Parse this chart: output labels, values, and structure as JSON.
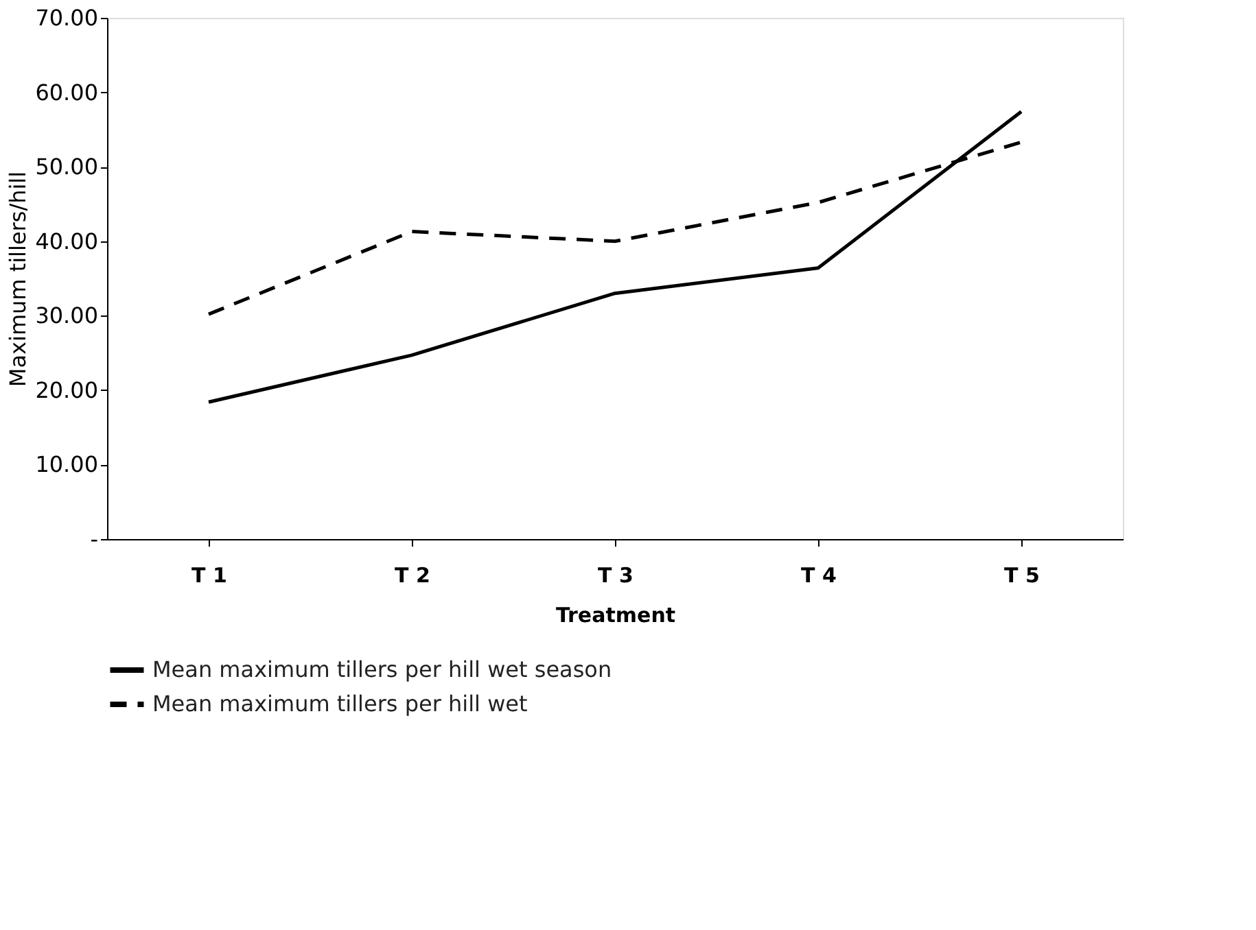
{
  "chart_data": {
    "type": "line",
    "xlabel": "Treatment",
    "ylabel": "Maximum tillers/hill",
    "categories": [
      "T 1",
      "T 2",
      "T 3",
      "T 4",
      "T 5"
    ],
    "series": [
      {
        "name": "Mean maximum tillers per hill wet season",
        "color": "#000000",
        "line_style": "solid",
        "values": [
          18.4,
          24.7,
          33.0,
          36.4,
          57.4
        ]
      },
      {
        "name": "Mean maximum tillers per hill wet",
        "color": "#000000",
        "line_style": "dashed",
        "values": [
          30.2,
          41.3,
          40.0,
          45.2,
          53.3
        ]
      }
    ],
    "ylim": [
      0,
      70
    ],
    "yticks": [
      {
        "value": 0,
        "label": "-"
      },
      {
        "value": 10,
        "label": "10.00"
      },
      {
        "value": 20,
        "label": "20.00"
      },
      {
        "value": 30,
        "label": "30.00"
      },
      {
        "value": 40,
        "label": "40.00"
      },
      {
        "value": 50,
        "label": "50.00"
      },
      {
        "value": 60,
        "label": "60.00"
      },
      {
        "value": 70,
        "label": "70.00"
      }
    ],
    "grid": false,
    "legend": "bottom"
  }
}
